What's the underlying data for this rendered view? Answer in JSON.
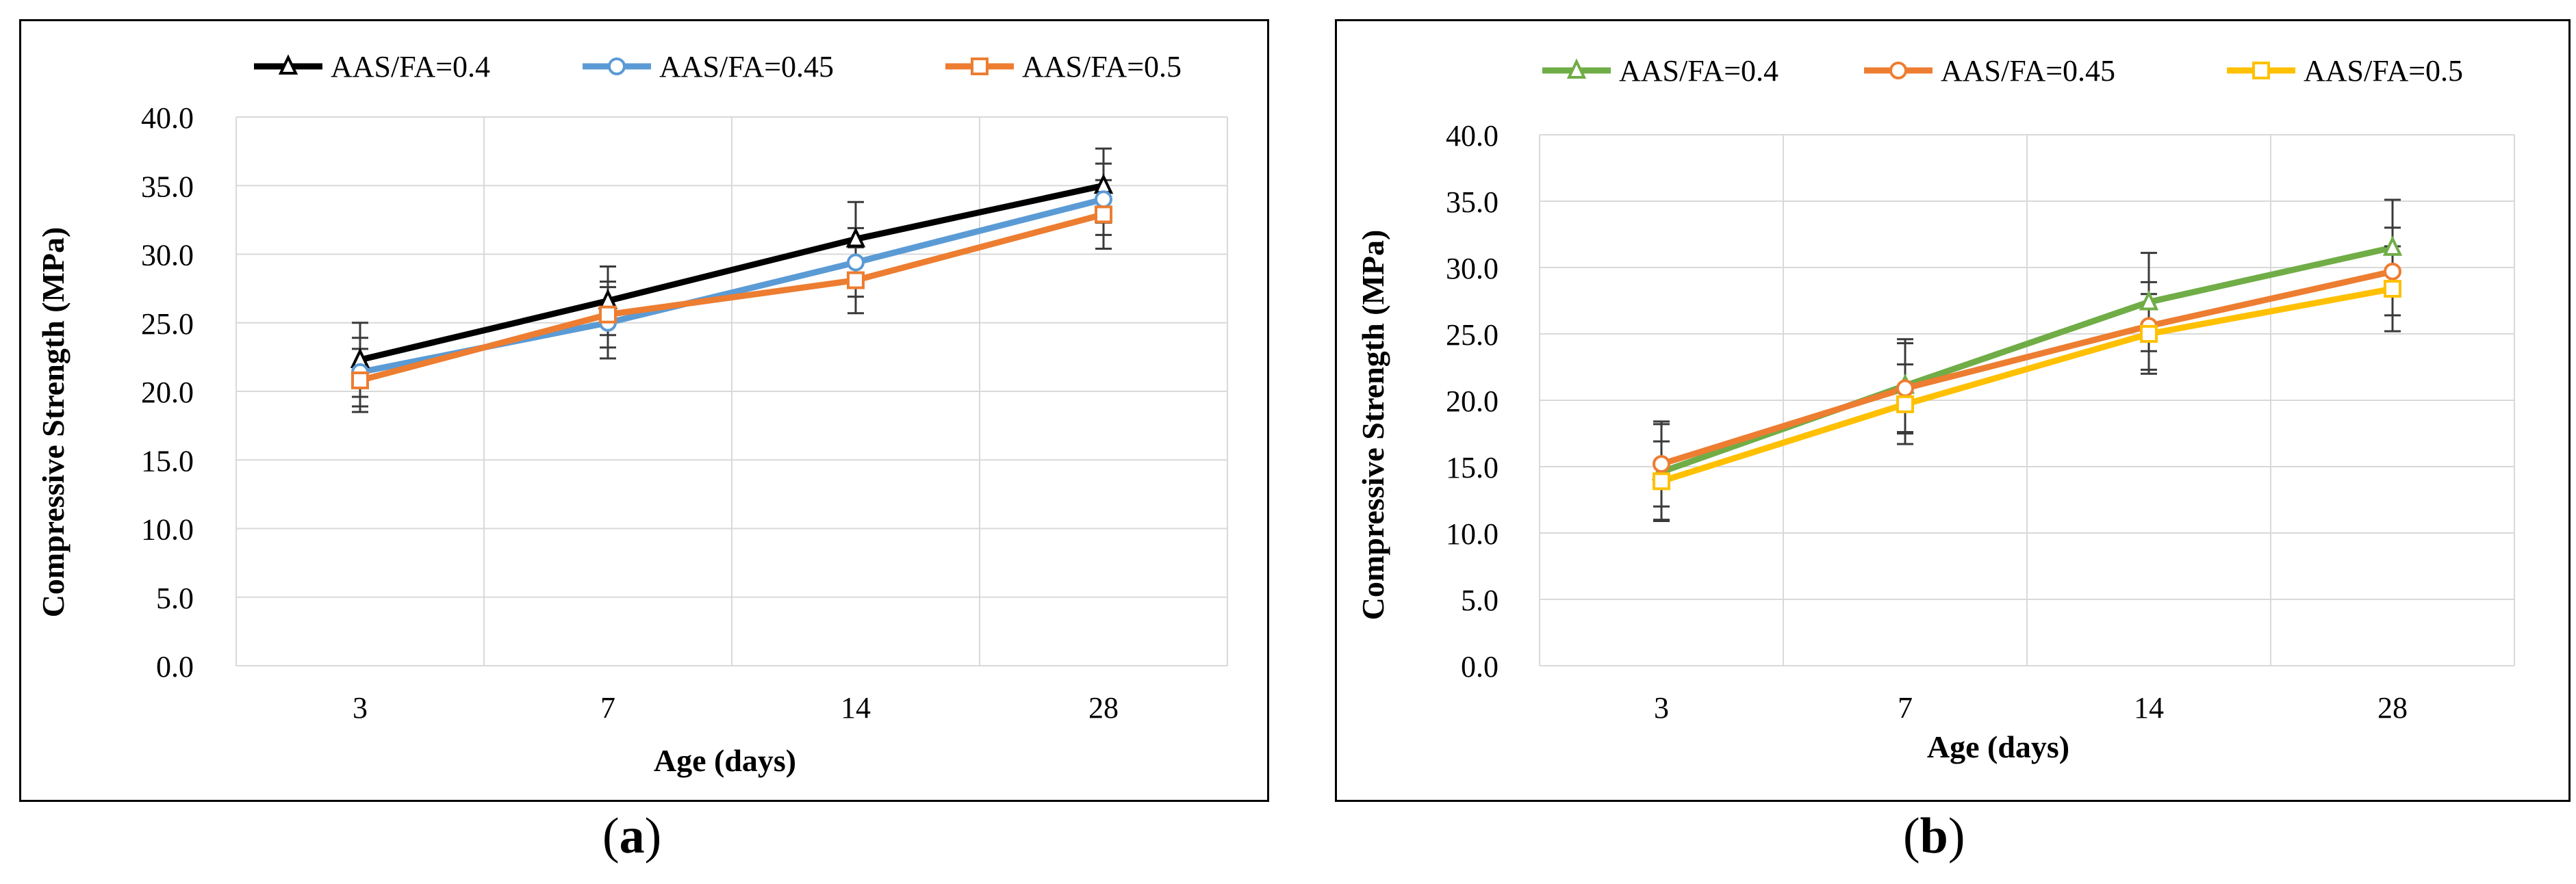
{
  "figure": {
    "caption_a": "a",
    "caption_b": "b"
  },
  "chart_data": [
    {
      "id": "a",
      "type": "line",
      "title": "",
      "xlabel": "Age (days)",
      "ylabel": "Compressive Strength (MPa)",
      "categories": [
        "3",
        "7",
        "14",
        "28"
      ],
      "ylim": [
        0,
        40
      ],
      "yticks": [
        "0.0",
        "5.0",
        "10.0",
        "15.0",
        "20.0",
        "25.0",
        "30.0",
        "35.0",
        "40.0"
      ],
      "grid": true,
      "legend": "top",
      "series": [
        {
          "name": "AAS/FA=0.4",
          "marker": "triangle",
          "color": "#000000",
          "values": [
            22.3,
            26.6,
            31.1,
            35.0
          ],
          "errors": [
            2.7,
            2.5,
            2.7,
            2.7
          ]
        },
        {
          "name": "AAS/FA=0.45",
          "marker": "circle",
          "color": "#5B9BD5",
          "values": [
            21.4,
            25.0,
            29.4,
            34.0
          ],
          "errors": [
            2.5,
            2.6,
            2.5,
            2.6
          ]
        },
        {
          "name": "AAS/FA=0.5",
          "marker": "square",
          "color": "#ED7D31",
          "values": [
            20.8,
            25.6,
            28.1,
            32.9
          ],
          "errors": [
            2.3,
            2.4,
            2.4,
            2.5
          ]
        }
      ]
    },
    {
      "id": "b",
      "type": "line",
      "title": "",
      "xlabel": "Age (days)",
      "ylabel": "Compressive Strength (MPa)",
      "categories": [
        "3",
        "7",
        "14",
        "28"
      ],
      "ylim": [
        0,
        40
      ],
      "yticks": [
        "0.0",
        "5.0",
        "10.0",
        "15.0",
        "20.0",
        "25.0",
        "30.0",
        "35.0",
        "40.0"
      ],
      "grid": true,
      "legend": "top",
      "series": [
        {
          "name": "AAS/FA=0.4",
          "marker": "triangle",
          "color": "#70AD47",
          "values": [
            14.6,
            21.1,
            27.4,
            31.5
          ],
          "errors": [
            3.6,
            3.5,
            3.7,
            3.6
          ]
        },
        {
          "name": "AAS/FA=0.45",
          "marker": "circle",
          "color": "#ED7D31",
          "values": [
            15.2,
            20.9,
            25.6,
            29.7
          ],
          "errors": [
            3.2,
            3.4,
            3.3,
            3.3
          ]
        },
        {
          "name": "AAS/FA=0.5",
          "marker": "square",
          "color": "#FFC000",
          "values": [
            13.9,
            19.7,
            25.0,
            28.4
          ],
          "errors": [
            3.0,
            3.0,
            3.0,
            3.2
          ]
        }
      ]
    }
  ]
}
